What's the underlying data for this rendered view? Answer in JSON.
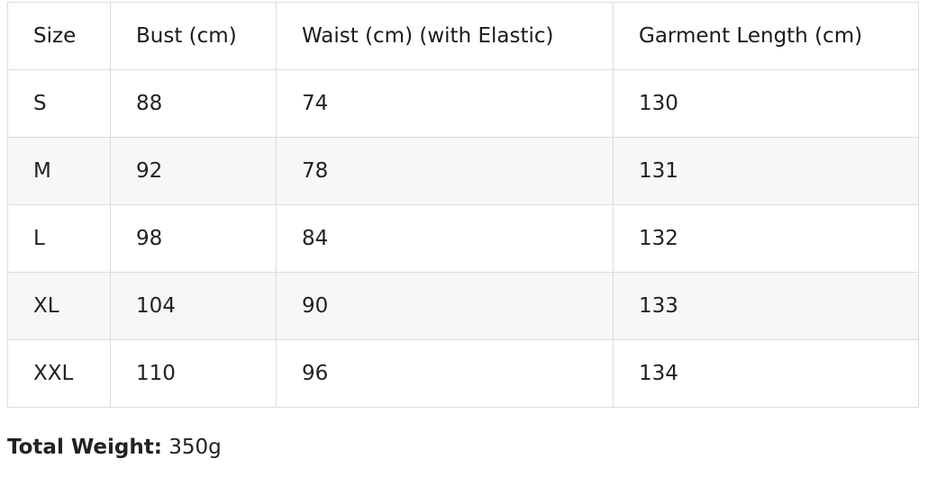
{
  "table": {
    "header": [
      "Size",
      "Bust (cm)",
      "Waist (cm) (with Elastic)",
      "Garment Length (cm)"
    ],
    "rows": [
      [
        "S",
        "88",
        "74",
        "130"
      ],
      [
        "M",
        "92",
        "78",
        "131"
      ],
      [
        "L",
        "98",
        "84",
        "132"
      ],
      [
        "XL",
        "104",
        "90",
        "133"
      ],
      [
        "XXL",
        "110",
        "96",
        "134"
      ]
    ]
  },
  "footer": {
    "label": "Total Weight:",
    "value": "350g"
  }
}
